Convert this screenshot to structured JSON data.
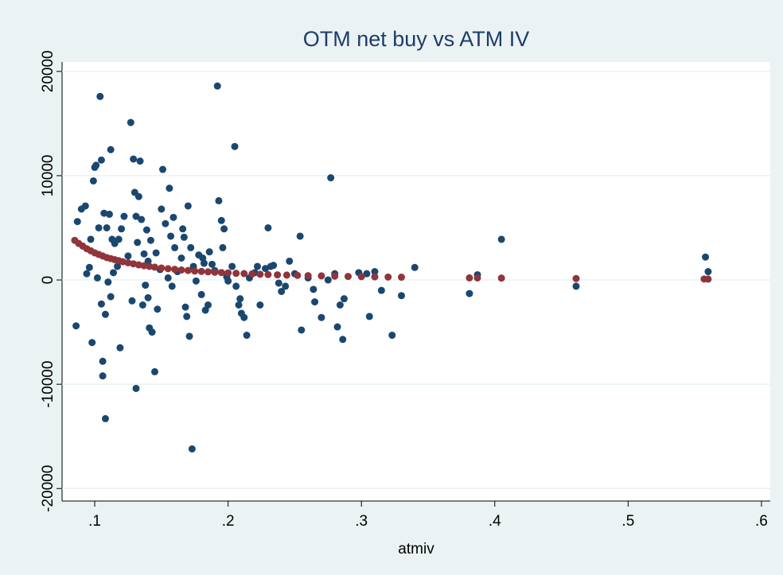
{
  "chart_data": {
    "type": "scatter",
    "title": "OTM net buy vs ATM IV",
    "x_label": "atmiv",
    "xlim": [
      0.0755,
      0.6066
    ],
    "ylim": [
      -21200,
      20900
    ],
    "xticks": [
      {
        "value": 0.1,
        "label": ".1"
      },
      {
        "value": 0.2,
        "label": ".2"
      },
      {
        "value": 0.3,
        "label": ".3"
      },
      {
        "value": 0.4,
        "label": ".4"
      },
      {
        "value": 0.5,
        "label": ".5"
      },
      {
        "value": 0.6,
        "label": ".6"
      }
    ],
    "yticks": [
      -20000,
      -10000,
      0,
      10000,
      20000
    ],
    "grid": true,
    "series": [
      {
        "color": "#1a476f",
        "x": [
          0.086,
          0.087,
          0.09,
          0.093,
          0.094,
          0.096,
          0.097,
          0.098,
          0.099,
          0.1,
          0.101,
          0.102,
          0.103,
          0.104,
          0.105,
          0.105,
          0.106,
          0.106,
          0.107,
          0.108,
          0.108,
          0.109,
          0.11,
          0.111,
          0.112,
          0.112,
          0.113,
          0.114,
          0.115,
          0.117,
          0.118,
          0.119,
          0.12,
          0.122,
          0.125,
          0.127,
          0.128,
          0.129,
          0.13,
          0.131,
          0.131,
          0.132,
          0.133,
          0.134,
          0.135,
          0.136,
          0.137,
          0.138,
          0.139,
          0.14,
          0.14,
          0.141,
          0.142,
          0.143,
          0.145,
          0.146,
          0.147,
          0.149,
          0.15,
          0.151,
          0.153,
          0.155,
          0.156,
          0.157,
          0.158,
          0.159,
          0.16,
          0.162,
          0.165,
          0.166,
          0.167,
          0.168,
          0.169,
          0.17,
          0.171,
          0.172,
          0.173,
          0.174,
          0.176,
          0.178,
          0.18,
          0.181,
          0.182,
          0.183,
          0.185,
          0.186,
          0.188,
          0.19,
          0.192,
          0.193,
          0.195,
          0.196,
          0.197,
          0.199,
          0.2,
          0.203,
          0.205,
          0.206,
          0.208,
          0.209,
          0.21,
          0.212,
          0.214,
          0.216,
          0.22,
          0.222,
          0.224,
          0.228,
          0.23,
          0.232,
          0.234,
          0.238,
          0.24,
          0.243,
          0.246,
          0.25,
          0.254,
          0.255,
          0.26,
          0.264,
          0.265,
          0.27,
          0.275,
          0.277,
          0.28,
          0.282,
          0.284,
          0.286,
          0.287,
          0.298,
          0.304,
          0.306,
          0.31,
          0.315,
          0.323,
          0.33,
          0.34,
          0.381,
          0.387,
          0.405,
          0.461,
          0.558,
          0.56
        ],
        "values": [
          -4400,
          5600,
          6800,
          7100,
          600,
          1200,
          3900,
          -6000,
          9500,
          10800,
          11000,
          200,
          5000,
          17600,
          11500,
          -2300,
          -7800,
          -9200,
          6400,
          -3300,
          -13300,
          5000,
          -200,
          6300,
          12500,
          -1600,
          3900,
          700,
          3500,
          1300,
          3900,
          -6500,
          4900,
          6100,
          2300,
          15100,
          -2000,
          11600,
          8400,
          6100,
          -10400,
          3600,
          8000,
          11400,
          5800,
          -2400,
          2500,
          -500,
          4800,
          1800,
          -1700,
          -4600,
          3800,
          -5000,
          -8800,
          2600,
          -2800,
          1000,
          6800,
          10600,
          5400,
          200,
          8800,
          4200,
          -600,
          6000,
          3100,
          800,
          2100,
          4900,
          4100,
          -2600,
          -3500,
          7100,
          -5400,
          3100,
          -16200,
          1300,
          -100,
          2400,
          -1400,
          2100,
          1600,
          -2900,
          -2400,
          2700,
          1500,
          900,
          18600,
          7600,
          5700,
          3100,
          4900,
          300,
          -100,
          1300,
          12800,
          -600,
          -2400,
          -1800,
          -3200,
          -3600,
          -5300,
          200,
          700,
          1300,
          -2400,
          1100,
          5000,
          1300,
          1400,
          -300,
          -1100,
          -600,
          1800,
          600,
          4200,
          -4800,
          200,
          -900,
          -2100,
          -3600,
          0,
          9800,
          600,
          -4500,
          -2400,
          -5700,
          -1800,
          700,
          600,
          -3500,
          800,
          -1000,
          -5300,
          -1500,
          1200,
          -1300,
          500,
          3900,
          -600,
          2200,
          800
        ]
      },
      {
        "color": "#90353b",
        "x": [
          0.085,
          0.088,
          0.091,
          0.094,
          0.097,
          0.1,
          0.103,
          0.106,
          0.109,
          0.112,
          0.115,
          0.118,
          0.121,
          0.125,
          0.129,
          0.133,
          0.137,
          0.141,
          0.145,
          0.15,
          0.155,
          0.16,
          0.165,
          0.17,
          0.175,
          0.18,
          0.185,
          0.19,
          0.195,
          0.2,
          0.206,
          0.212,
          0.218,
          0.224,
          0.23,
          0.237,
          0.244,
          0.252,
          0.26,
          0.27,
          0.28,
          0.29,
          0.3,
          0.31,
          0.32,
          0.33,
          0.381,
          0.387,
          0.405,
          0.461,
          0.557,
          0.56
        ],
        "values": [
          3800,
          3500,
          3250,
          3000,
          2800,
          2600,
          2450,
          2300,
          2150,
          2050,
          1950,
          1850,
          1750,
          1650,
          1550,
          1450,
          1370,
          1300,
          1230,
          1150,
          1080,
          1020,
          960,
          910,
          860,
          820,
          780,
          740,
          710,
          680,
          640,
          610,
          580,
          550,
          520,
          490,
          465,
          440,
          415,
          390,
          365,
          340,
          320,
          300,
          280,
          265,
          200,
          195,
          180,
          140,
          90,
          85
        ]
      }
    ]
  }
}
